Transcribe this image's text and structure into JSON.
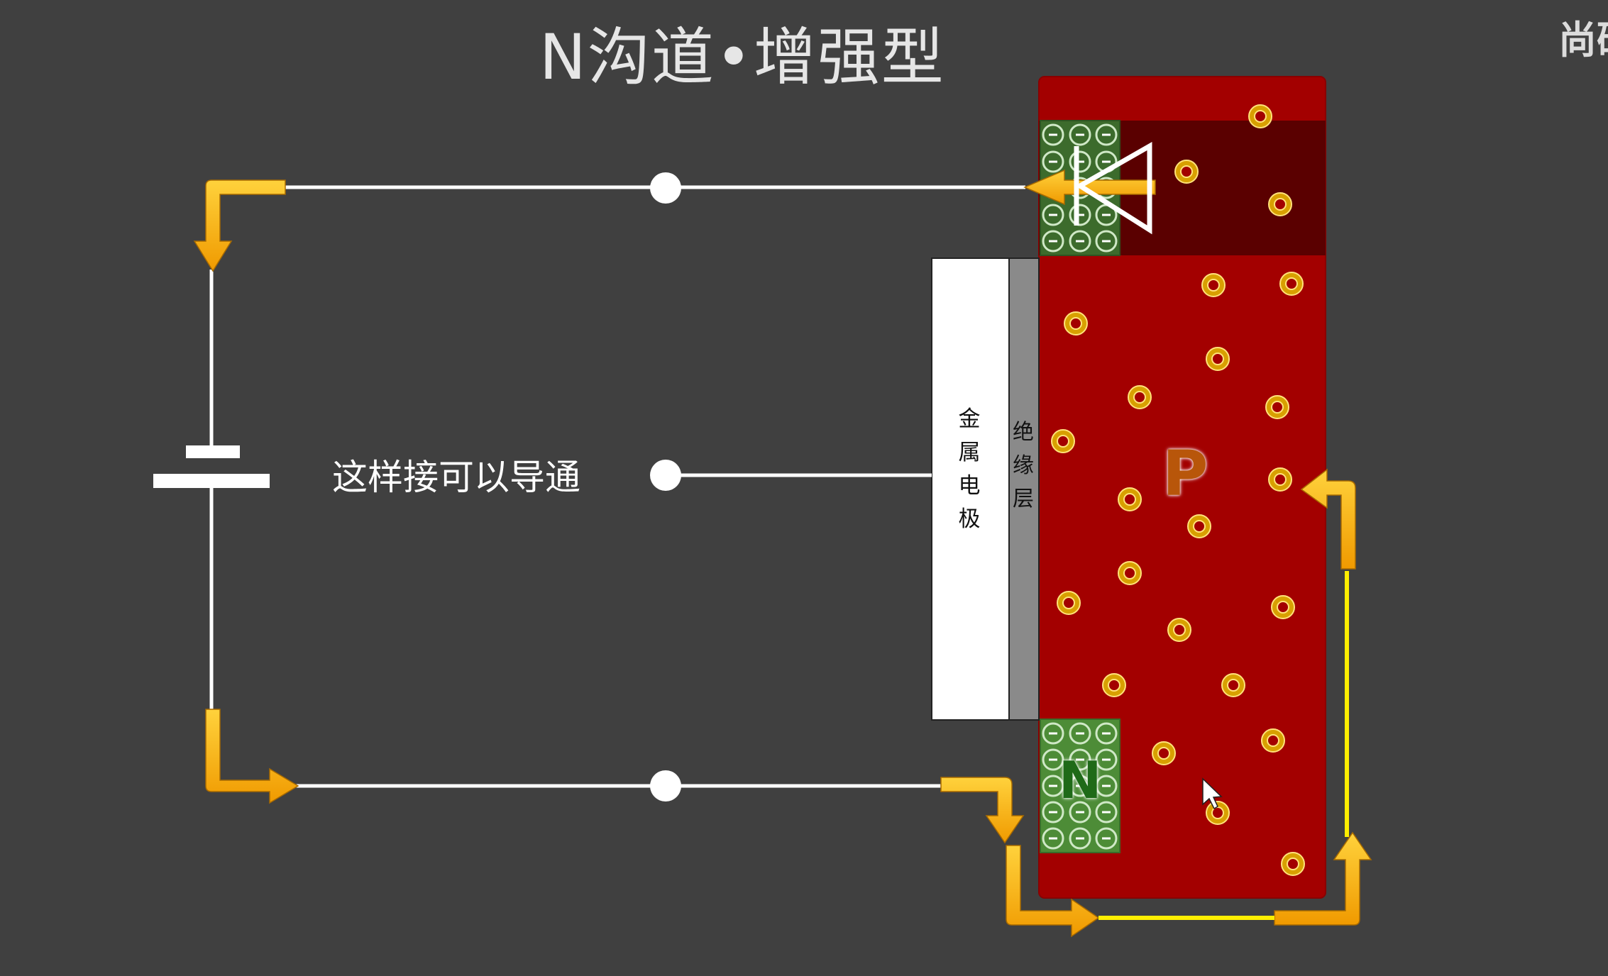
{
  "title": "N沟道•增强型",
  "corner_text": "尚硅",
  "caption": "这样接可以导通",
  "gate_label": "金属电极",
  "oxide_label": "绝缘层",
  "substrate_label": "P",
  "source_label": "N",
  "colors": {
    "background": "#404040",
    "substrate": "#a30000",
    "n_region": "#4a8a35",
    "arrow": "#f7b500",
    "wire": "#ffffff"
  }
}
